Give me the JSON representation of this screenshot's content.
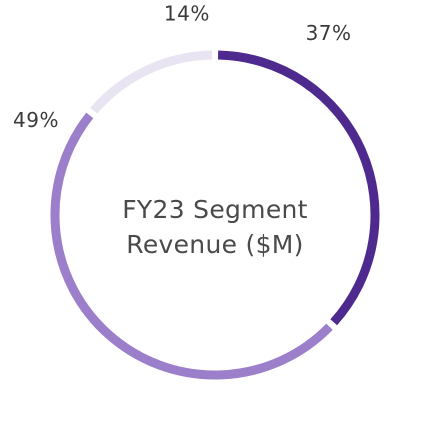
{
  "chart_data": {
    "type": "pie",
    "style": "donut",
    "title_lines": [
      "FY23 Segment",
      "Revenue ($M)"
    ],
    "slices": [
      {
        "label": "37%",
        "value": 37,
        "color": "#4e2a8e"
      },
      {
        "label": "49%",
        "value": 49,
        "color": "#9b7fca"
      },
      {
        "label": "14%",
        "value": 14,
        "color": "#e8e4f2"
      }
    ],
    "start_angle_deg": 0,
    "direction": "clockwise",
    "legend": "none"
  }
}
